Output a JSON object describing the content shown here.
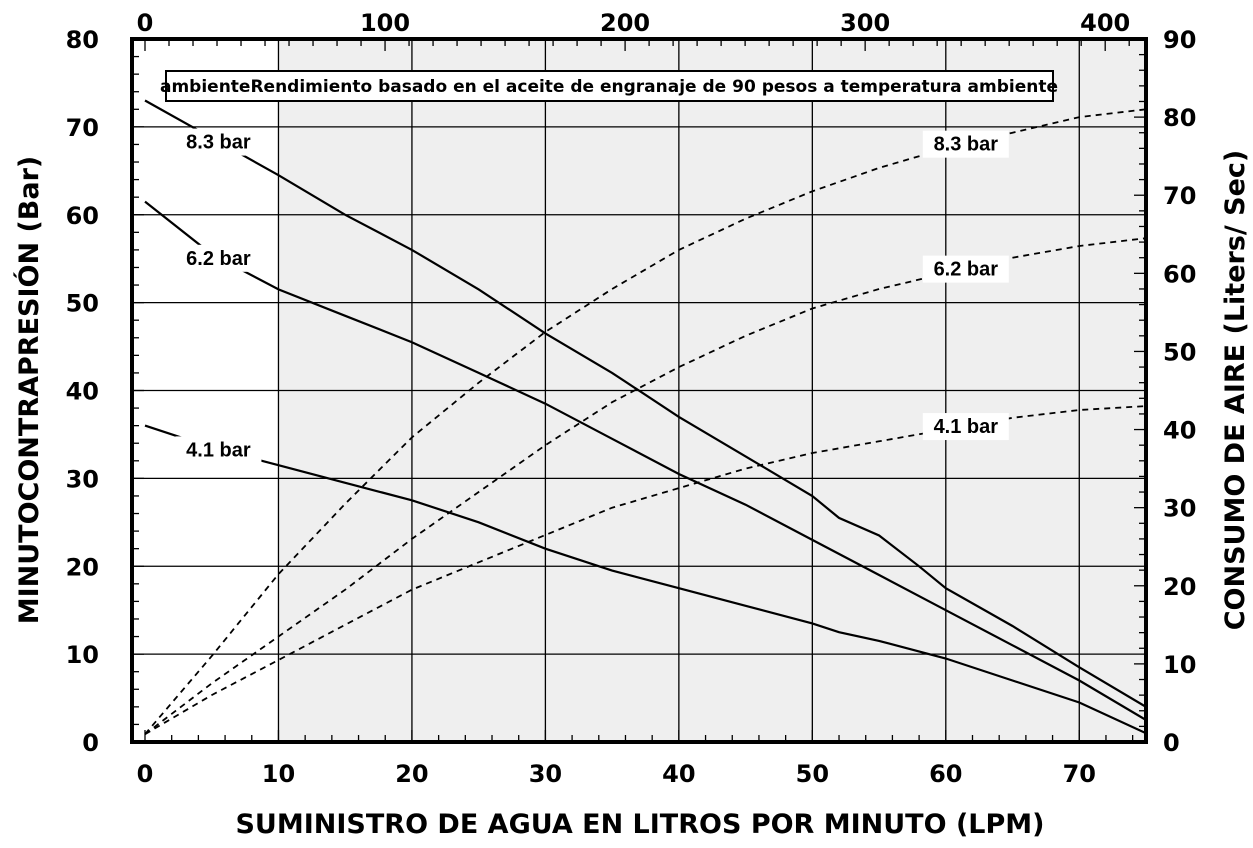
{
  "chart_data": {
    "type": "line",
    "note": "ambienteRendimiento basado en el aceite de engranaje de 90 pesos a temperatura ambiente",
    "xlabel": "SUMINISTRO DE AGUA EN LITROS POR MINUTO (LPM)",
    "ylabel": "MINUTOCONTRAPRESIÓN (Bar)",
    "y2label": "CONSUMO DE AIRE (Liters/ Sec)",
    "xlim": [
      0,
      75
    ],
    "ylim": [
      0,
      80
    ],
    "y2lim": [
      0,
      90
    ],
    "x2lim": [
      0,
      417
    ],
    "x_ticks": [
      "0",
      "10",
      "20",
      "30",
      "40",
      "50",
      "60",
      "70"
    ],
    "y_ticks": [
      "0",
      "10",
      "20",
      "30",
      "40",
      "50",
      "60",
      "70",
      "80"
    ],
    "y2_ticks": [
      "0",
      "10",
      "20",
      "30",
      "40",
      "50",
      "60",
      "70",
      "80",
      "90"
    ],
    "x2_ticks": [
      "0",
      "100",
      "200",
      "300",
      "400"
    ],
    "grid": true,
    "shaded_region_x": [
      10,
      75
    ],
    "series": [
      {
        "name": "8.3 bar",
        "kind": "pressure",
        "axis": "left",
        "style": "solid",
        "x": [
          0,
          10,
          15,
          20,
          25,
          30,
          35,
          40,
          45,
          50,
          52,
          55,
          58,
          60,
          65,
          70,
          75
        ],
        "y": [
          73,
          64.5,
          60,
          56,
          51.5,
          46.5,
          42,
          37,
          32.5,
          28,
          25.5,
          23.5,
          20,
          17.5,
          13.2,
          8.5,
          4
        ]
      },
      {
        "name": "6.2 bar",
        "kind": "pressure",
        "axis": "left",
        "style": "solid",
        "x": [
          0,
          5,
          10,
          15,
          20,
          25,
          30,
          35,
          40,
          45,
          50,
          55,
          60,
          65,
          70,
          75
        ],
        "y": [
          61.5,
          55.5,
          51.5,
          48.5,
          45.5,
          42,
          38.5,
          34.5,
          30.5,
          27,
          23,
          19,
          15,
          11,
          7,
          2.5
        ]
      },
      {
        "name": "4.1 bar",
        "kind": "pressure",
        "axis": "left",
        "style": "solid",
        "x": [
          0,
          5,
          10,
          15,
          20,
          25,
          30,
          35,
          40,
          45,
          50,
          52,
          55,
          60,
          65,
          70,
          75
        ],
        "y": [
          36,
          33.5,
          31.5,
          29.5,
          27.5,
          25,
          22,
          19.5,
          17.5,
          15.5,
          13.5,
          12.5,
          11.5,
          9.5,
          7,
          4.5,
          1
        ]
      },
      {
        "name": "8.3 bar",
        "kind": "air",
        "axis": "right",
        "style": "dashed",
        "x": [
          0,
          5,
          10,
          15,
          20,
          25,
          30,
          35,
          40,
          45,
          50,
          55,
          60,
          65,
          70,
          75
        ],
        "y": [
          1,
          11,
          21.5,
          30.5,
          39,
          46,
          52.5,
          58,
          63,
          67,
          70.5,
          73.5,
          76,
          78,
          80,
          81
        ]
      },
      {
        "name": "6.2 bar",
        "kind": "air",
        "axis": "right",
        "style": "dashed",
        "x": [
          0,
          5,
          10,
          15,
          20,
          25,
          30,
          35,
          40,
          45,
          50,
          55,
          60,
          65,
          70,
          75
        ],
        "y": [
          1,
          7.5,
          13.5,
          19.5,
          26,
          32,
          38,
          43.5,
          48,
          52,
          55.5,
          58,
          60,
          62,
          63.5,
          64.5
        ]
      },
      {
        "name": "4.1 bar",
        "kind": "air",
        "axis": "right",
        "style": "dashed",
        "x": [
          0,
          5,
          10,
          15,
          20,
          25,
          30,
          35,
          40,
          45,
          50,
          55,
          60,
          65,
          70,
          75
        ],
        "y": [
          1,
          6,
          10.5,
          15,
          19.5,
          23,
          26.5,
          30,
          32.5,
          35,
          37,
          38.5,
          40,
          41.5,
          42.5,
          43
        ]
      }
    ]
  }
}
